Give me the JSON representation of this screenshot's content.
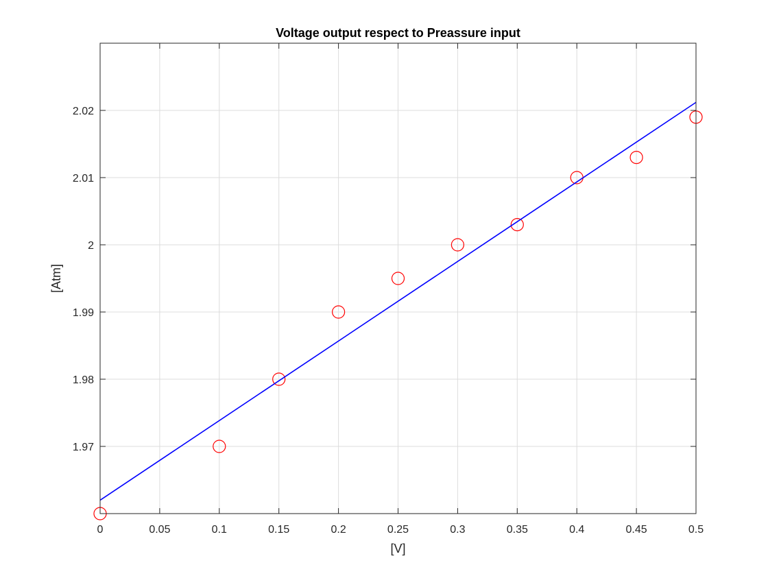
{
  "chart_data": {
    "type": "scatter",
    "title": "Voltage output respect to Preassure input",
    "xlabel": "[V]",
    "ylabel": "[Atm]",
    "xlim": [
      0,
      0.5
    ],
    "ylim": [
      1.96,
      2.03
    ],
    "xticks": [
      0,
      0.05,
      0.1,
      0.15,
      0.2,
      0.25,
      0.3,
      0.35,
      0.4,
      0.45,
      0.5
    ],
    "xtick_labels": [
      "0",
      "0.05",
      "0.1",
      "0.15",
      "0.2",
      "0.25",
      "0.3",
      "0.35",
      "0.4",
      "0.45",
      "0.5"
    ],
    "yticks": [
      1.97,
      1.98,
      1.99,
      2.0,
      2.01,
      2.02
    ],
    "ytick_labels": [
      "1.97",
      "1.98",
      "1.99",
      "2",
      "2.01",
      "2.02"
    ],
    "grid": true,
    "series": [
      {
        "kind": "scatter",
        "marker": "circle",
        "color": "#ff0000",
        "x": [
          0,
          0.1,
          0.15,
          0.2,
          0.25,
          0.3,
          0.35,
          0.4,
          0.45,
          0.5
        ],
        "y": [
          1.96,
          1.97,
          1.98,
          1.99,
          1.995,
          2.0,
          2.003,
          2.01,
          2.013,
          2.019
        ]
      },
      {
        "kind": "line",
        "color": "#0000ff",
        "x": [
          0,
          0.5
        ],
        "y": [
          1.962,
          2.0212
        ]
      }
    ]
  }
}
